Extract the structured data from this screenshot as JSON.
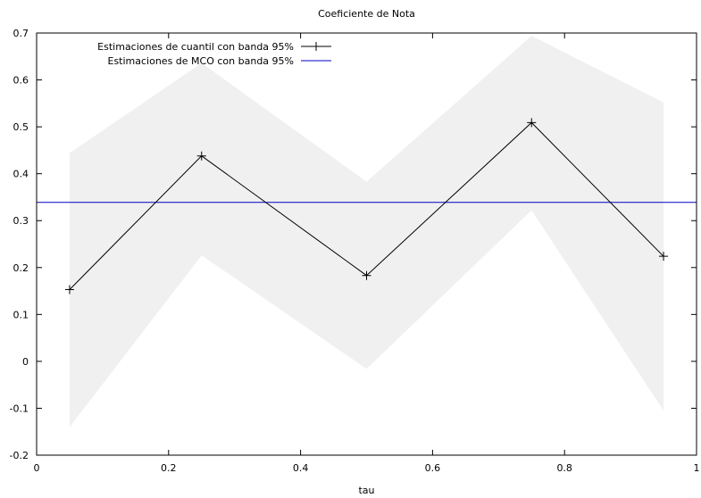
{
  "chart_data": {
    "type": "line",
    "title": "Coeficiente de Nota",
    "xlabel": "tau",
    "ylabel": "",
    "xlim": [
      0,
      1
    ],
    "ylim": [
      -0.2,
      0.7
    ],
    "xticks": [
      0,
      0.2,
      0.4,
      0.6,
      0.8,
      1
    ],
    "xtick_labels": [
      "0",
      "0.2",
      "0.4",
      "0.6",
      "0.8",
      "1"
    ],
    "yticks": [
      -0.2,
      -0.1,
      0,
      0.1,
      0.2,
      0.3,
      0.4,
      0.5,
      0.6,
      0.7
    ],
    "ytick_labels": [
      "-0.2",
      "-0.1",
      "0",
      "0.1",
      "0.2",
      "0.3",
      "0.4",
      "0.5",
      "0.6",
      "0.7"
    ],
    "grid": false,
    "legend_position": "top-left",
    "series": [
      {
        "name": "Estimaciones de cuantil con banda 95%",
        "kind": "line-points",
        "color": "#000000",
        "marker": "plus",
        "x": [
          0.05,
          0.25,
          0.5,
          0.75,
          0.95
        ],
        "y": [
          0.153,
          0.438,
          0.183,
          0.509,
          0.224
        ],
        "band_lower": [
          -0.14,
          0.226,
          -0.016,
          0.322,
          -0.105
        ],
        "band_upper": [
          0.444,
          0.636,
          0.383,
          0.694,
          0.552
        ],
        "band_color": "#f0f0f0"
      },
      {
        "name": "Estimaciones de MCO con banda 95%",
        "kind": "hline",
        "color": "#0000c0",
        "y": 0.339
      }
    ]
  }
}
